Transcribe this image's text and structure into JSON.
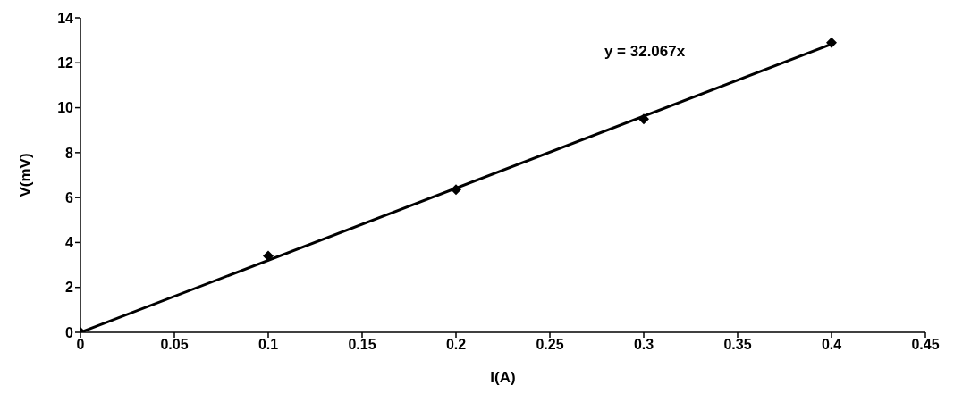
{
  "chart_data": {
    "type": "scatter",
    "xlabel": "I(A)",
    "ylabel": "V(mV)",
    "xlim": [
      0,
      0.45
    ],
    "xticks": [
      0,
      0.05,
      0.1,
      0.15,
      0.2,
      0.25,
      0.3,
      0.35,
      0.4,
      0.45
    ],
    "ylim": [
      0,
      14
    ],
    "yticks": [
      0,
      2,
      4,
      6,
      8,
      10,
      12,
      14
    ],
    "grid": false,
    "legend": false,
    "series": [
      {
        "type": "scatter",
        "color": "#000000",
        "marker": "diamond",
        "x": [
          0,
          0.1,
          0.2,
          0.3,
          0.4
        ],
        "values": [
          0,
          3.4,
          6.35,
          9.5,
          12.9
        ]
      },
      {
        "type": "line",
        "color": "#000000",
        "marker": "none",
        "line_style": "solid",
        "x": [
          0,
          0.4
        ],
        "values": [
          0,
          12.83
        ]
      }
    ],
    "annotations": [
      "y = 32.067x"
    ]
  }
}
